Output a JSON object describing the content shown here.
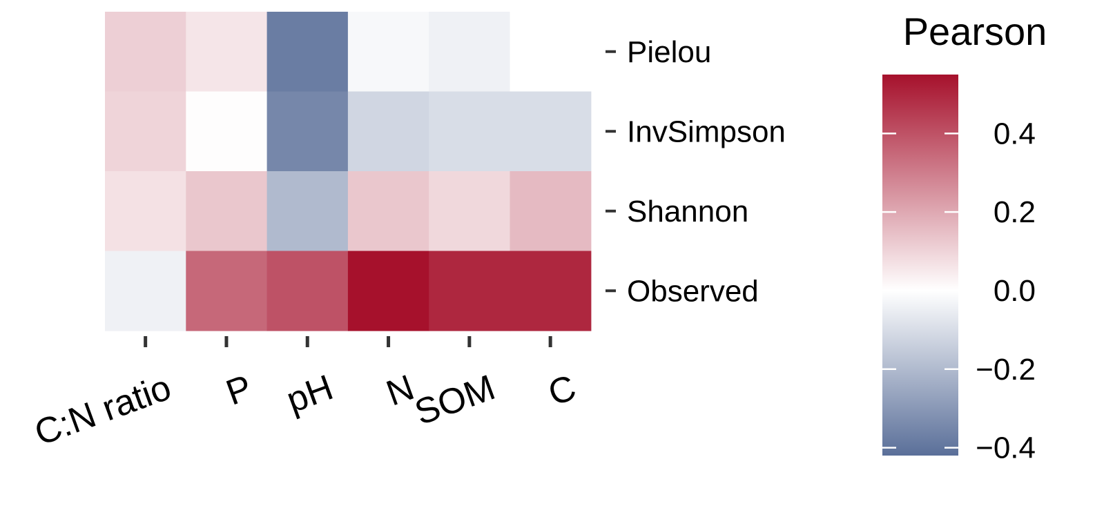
{
  "chart_data": {
    "type": "heatmap",
    "columns": [
      "C:N ratio",
      "P",
      "pH",
      "N",
      "SOM",
      "C"
    ],
    "rows": [
      "Pielou",
      "InvSimpson",
      "Shannon",
      "Observed"
    ],
    "values": [
      [
        0.11,
        0.06,
        -0.38,
        -0.02,
        -0.04,
        0.0
      ],
      [
        0.1,
        0.005,
        -0.35,
        -0.12,
        -0.1,
        -0.1
      ],
      [
        0.07,
        0.13,
        -0.2,
        0.13,
        0.09,
        0.16
      ],
      [
        -0.04,
        0.35,
        0.4,
        0.55,
        0.5,
        0.5
      ]
    ],
    "colorbar": {
      "title": "Pearson",
      "range": [
        -0.42,
        0.55
      ],
      "ticks": [
        0.4,
        0.2,
        0.0,
        -0.2,
        -0.4
      ],
      "tick_labels": [
        "0.4",
        "0.2",
        "0.0",
        "−0.2",
        "−0.4"
      ],
      "colors": {
        "low": "#5a6f99",
        "mid": "#ffffff",
        "high": "#a6112c"
      }
    },
    "legend_position": "right"
  }
}
